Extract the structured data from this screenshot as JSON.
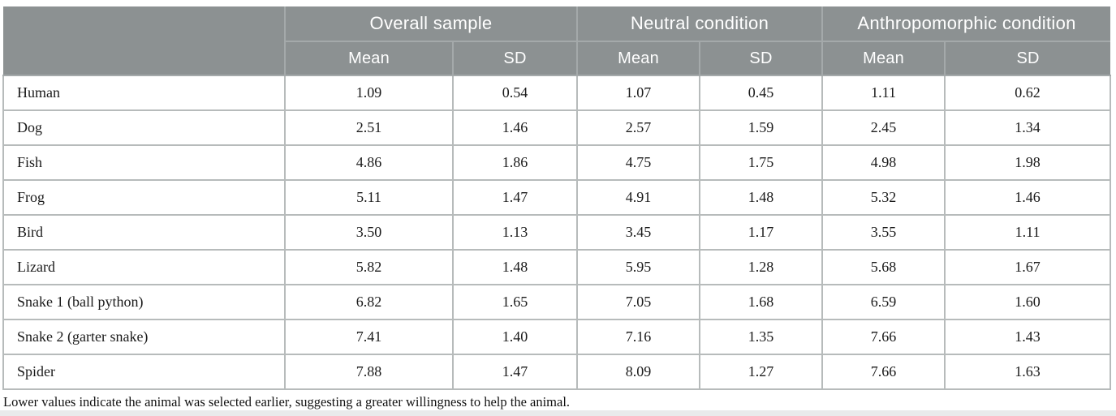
{
  "table": {
    "col_groups": [
      {
        "label": "Overall sample"
      },
      {
        "label": "Neutral condition"
      },
      {
        "label": "Anthropomorphic condition"
      }
    ],
    "sub_headers": {
      "mean": "Mean",
      "sd": "SD"
    },
    "rows": [
      {
        "label": "Human",
        "values": [
          "1.09",
          "0.54",
          "1.07",
          "0.45",
          "1.11",
          "0.62"
        ]
      },
      {
        "label": "Dog",
        "values": [
          "2.51",
          "1.46",
          "2.57",
          "1.59",
          "2.45",
          "1.34"
        ]
      },
      {
        "label": "Fish",
        "values": [
          "4.86",
          "1.86",
          "4.75",
          "1.75",
          "4.98",
          "1.98"
        ]
      },
      {
        "label": "Frog",
        "values": [
          "5.11",
          "1.47",
          "4.91",
          "1.48",
          "5.32",
          "1.46"
        ]
      },
      {
        "label": "Bird",
        "values": [
          "3.50",
          "1.13",
          "3.45",
          "1.17",
          "3.55",
          "1.11"
        ]
      },
      {
        "label": "Lizard",
        "values": [
          "5.82",
          "1.48",
          "5.95",
          "1.28",
          "5.68",
          "1.67"
        ]
      },
      {
        "label": "Snake 1 (ball python)",
        "values": [
          "6.82",
          "1.65",
          "7.05",
          "1.68",
          "6.59",
          "1.60"
        ]
      },
      {
        "label": "Snake 2 (garter snake)",
        "values": [
          "7.41",
          "1.40",
          "7.16",
          "1.35",
          "7.66",
          "1.43"
        ]
      },
      {
        "label": "Spider",
        "values": [
          "7.88",
          "1.47",
          "8.09",
          "1.27",
          "7.66",
          "1.63"
        ]
      }
    ],
    "footnote": "Lower values indicate the animal was selected earlier, suggesting a greater willingness to help the animal."
  },
  "colors": {
    "header_bg": "#8c9192",
    "header_text": "#ffffff",
    "header_border": "#a4a9aa",
    "cell_border": "#b7bbbb"
  }
}
